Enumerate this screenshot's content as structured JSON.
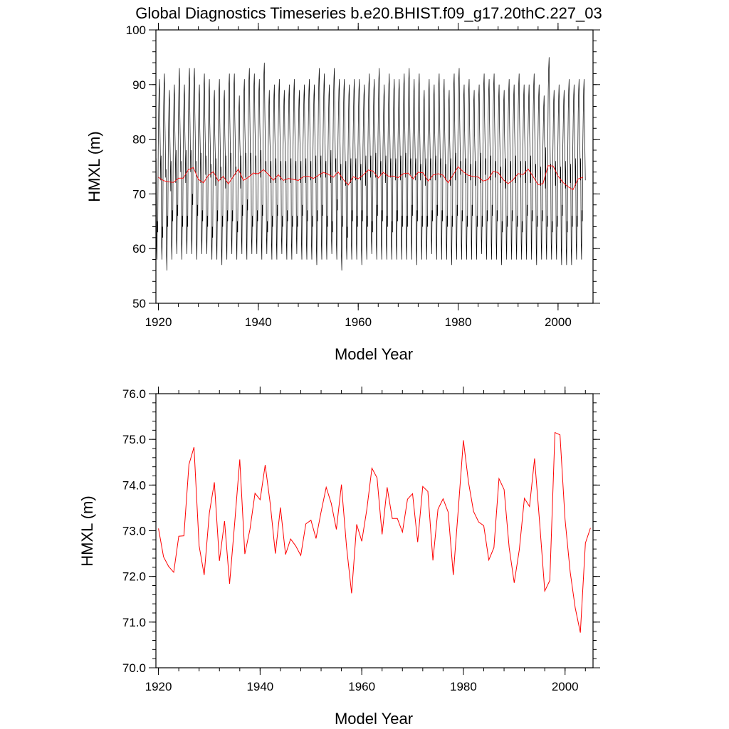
{
  "title": "Global Diagnostics Timeseries b.e20.BHIST.f09_g17.20thC.227_03",
  "colors": {
    "monthly": "#000000",
    "annual": "#ff0000"
  },
  "chart_data": [
    {
      "type": "line",
      "xlabel": "Model Year",
      "ylabel": "HMXL (m)",
      "xlim": [
        1919.5,
        2007
      ],
      "ylim": [
        50,
        100
      ],
      "x_ticks": [
        "1920",
        "1940",
        "1960",
        "1980",
        "2000"
      ],
      "y_ticks": [
        "50",
        "60",
        "70",
        "80",
        "90",
        "100"
      ],
      "grid": false,
      "monthly_envelope": {
        "description_free": true,
        "years": [
          1920,
          1921,
          1922,
          1923,
          1924,
          1925,
          1926,
          1927,
          1928,
          1929,
          1930,
          1931,
          1932,
          1933,
          1934,
          1935,
          1936,
          1937,
          1938,
          1939,
          1940,
          1941,
          1942,
          1943,
          1944,
          1945,
          1946,
          1947,
          1948,
          1949,
          1950,
          1951,
          1952,
          1953,
          1954,
          1955,
          1956,
          1957,
          1958,
          1959,
          1960,
          1961,
          1962,
          1963,
          1964,
          1965,
          1966,
          1967,
          1968,
          1969,
          1970,
          1971,
          1972,
          1973,
          1974,
          1975,
          1976,
          1977,
          1978,
          1979,
          1980,
          1981,
          1982,
          1983,
          1984,
          1985,
          1986,
          1987,
          1988,
          1989,
          1990,
          1991,
          1992,
          1993,
          1994,
          1995,
          1996,
          1997,
          1998,
          1999,
          2000,
          2001,
          2002,
          2003,
          2004,
          2005
        ],
        "max": [
          91,
          92,
          89,
          90,
          93,
          90,
          93,
          93,
          90,
          92,
          91,
          89,
          91,
          89,
          92,
          92,
          88,
          91,
          93,
          92,
          91,
          94,
          89,
          90,
          91,
          89,
          90,
          91,
          89,
          90,
          91,
          90,
          93,
          92,
          90,
          93,
          91,
          91,
          90,
          91,
          91,
          90,
          92,
          91,
          93,
          90,
          92,
          91,
          91,
          92,
          93,
          91,
          92,
          89,
          91,
          90,
          92,
          91,
          89,
          92,
          93,
          90,
          91,
          89,
          90,
          92,
          91,
          92,
          90,
          89,
          91,
          90,
          92,
          90,
          90,
          92,
          90,
          88,
          95,
          89,
          90,
          89,
          91,
          90,
          91,
          91
        ],
        "min": [
          58,
          58,
          56,
          58,
          59,
          58,
          59,
          59,
          58,
          59,
          59,
          58,
          58,
          57,
          58,
          59,
          58,
          59,
          58,
          59,
          59,
          58,
          59,
          58,
          58,
          59,
          58,
          58,
          59,
          58,
          58,
          58,
          57,
          58,
          58,
          59,
          58,
          56,
          58,
          58,
          58,
          57,
          58,
          59,
          58,
          58,
          58,
          58,
          58,
          58,
          58,
          58,
          57,
          58,
          58,
          59,
          58,
          58,
          58,
          57,
          58,
          58,
          58,
          58,
          58,
          59,
          58,
          58,
          58,
          57,
          58,
          58,
          58,
          58,
          58,
          58,
          57,
          58,
          58,
          58,
          58,
          57,
          57,
          57,
          58,
          58
        ],
        "secondary": [
          65,
          64,
          66,
          67,
          68,
          66,
          66,
          70,
          68,
          67,
          66,
          64,
          67,
          66,
          67,
          67,
          65,
          68,
          69,
          66,
          67,
          68,
          65,
          66,
          68,
          66,
          67,
          66,
          66,
          68,
          67,
          66,
          67,
          68,
          66,
          65,
          69,
          66,
          64,
          67,
          66,
          67,
          66,
          65,
          68,
          67,
          66,
          65,
          67,
          66,
          66,
          68,
          67,
          66,
          66,
          67,
          68,
          67,
          66,
          66,
          68,
          67,
          66,
          68,
          66,
          66,
          67,
          68,
          67,
          65,
          66,
          67,
          66,
          65,
          68,
          67,
          66,
          67,
          66,
          65,
          66,
          68,
          65,
          66,
          66,
          67
        ]
      },
      "annual_mean": {
        "x": [
          1920,
          1921,
          1922,
          1923,
          1924,
          1925,
          1926,
          1927,
          1928,
          1929,
          1930,
          1931,
          1932,
          1933,
          1934,
          1935,
          1936,
          1937,
          1938,
          1939,
          1940,
          1941,
          1942,
          1943,
          1944,
          1945,
          1946,
          1947,
          1948,
          1949,
          1950,
          1951,
          1952,
          1953,
          1954,
          1955,
          1956,
          1957,
          1958,
          1959,
          1960,
          1961,
          1962,
          1963,
          1964,
          1965,
          1966,
          1967,
          1968,
          1969,
          1970,
          1971,
          1972,
          1973,
          1974,
          1975,
          1976,
          1977,
          1978,
          1979,
          1980,
          1981,
          1982,
          1983,
          1984,
          1985,
          1986,
          1987,
          1988,
          1989,
          1990,
          1991,
          1992,
          1993,
          1994,
          1995,
          1996,
          1997,
          1998,
          1999,
          2000,
          2001,
          2002,
          2003,
          2004,
          2005
        ],
        "y": [
          73.05,
          72.43,
          72.22,
          72.09,
          72.88,
          72.89,
          74.45,
          74.83,
          72.67,
          72.03,
          73.38,
          74.06,
          72.34,
          73.21,
          71.84,
          73.18,
          74.56,
          72.49,
          73.03,
          73.82,
          73.68,
          74.44,
          73.59,
          72.5,
          73.51,
          72.48,
          72.82,
          72.67,
          72.46,
          73.15,
          73.23,
          72.83,
          73.41,
          73.95,
          73.6,
          73.03,
          74.01,
          72.66,
          71.63,
          73.14,
          72.77,
          73.47,
          74.37,
          74.16,
          72.92,
          73.95,
          73.27,
          73.27,
          72.97,
          73.69,
          73.81,
          72.75,
          73.97,
          73.86,
          72.35,
          73.47,
          73.7,
          73.41,
          72.03,
          73.48,
          74.98,
          74.06,
          73.42,
          73.19,
          73.11,
          72.36,
          72.63,
          74.14,
          73.9,
          72.63,
          71.86,
          72.59,
          73.71,
          73.53,
          74.58,
          73.18,
          71.68,
          71.91,
          75.15,
          75.1,
          73.25,
          72.1,
          71.31,
          70.77,
          72.73,
          73.06
        ]
      }
    },
    {
      "type": "line",
      "xlabel": "Model Year",
      "ylabel": "HMXL (m)",
      "xlim": [
        1919.5,
        2005.5
      ],
      "ylim": [
        70,
        76
      ],
      "x_ticks": [
        "1920",
        "1940",
        "1960",
        "1980",
        "2000"
      ],
      "y_ticks": [
        "70.0",
        "71.0",
        "72.0",
        "73.0",
        "74.0",
        "75.0",
        "76.0"
      ],
      "grid": false,
      "series_ref": "annual_mean"
    }
  ]
}
